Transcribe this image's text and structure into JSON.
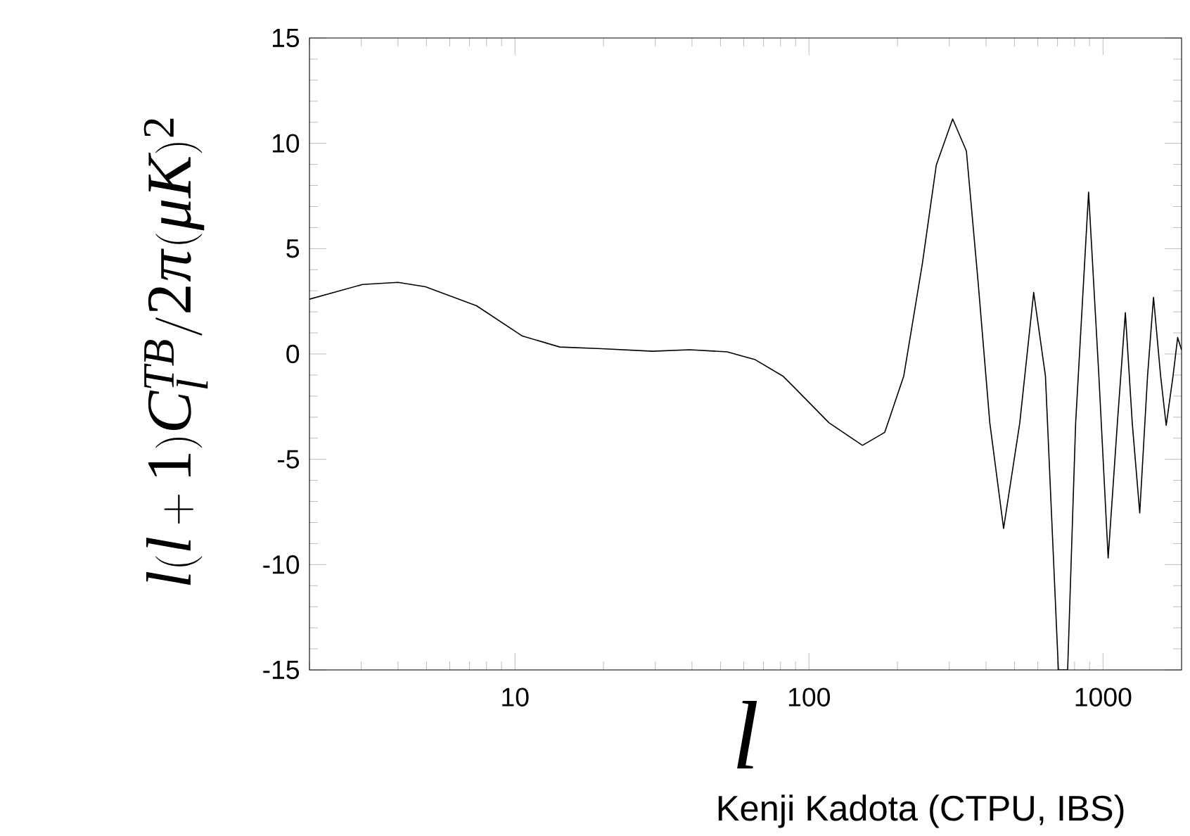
{
  "chart_data": {
    "type": "line",
    "ylabel": "l(l+1)C_l^{TB}/2\\pi(\\mu K)^2",
    "xlabel": "l",
    "log": "x",
    "xlim": [
      2,
      1850
    ],
    "ylim": [
      -15,
      15
    ],
    "xticks": [
      10,
      100,
      1000
    ],
    "yticks": [
      -15,
      -10,
      -5,
      0,
      5,
      10,
      15
    ],
    "annotations": [
      "Kenji Kadota (CTPU, IBS)"
    ],
    "series": [
      {
        "color": "#000000",
        "x": [
          2,
          3.03,
          4.0,
          4.96,
          7.4,
          10.6,
          14.2,
          19.7,
          29.4,
          39.3,
          52.7,
          65.6,
          81.5,
          87.7,
          117,
          152,
          181,
          210,
          243,
          271,
          308,
          343,
          376,
          412,
          459,
          521,
          581,
          637,
          705,
          758,
          807,
          893,
          968,
          1041,
          1119,
          1191,
          1257,
          1333,
          1417,
          1485,
          1570,
          1640,
          1730,
          1794,
          1849
        ],
        "values": [
          2.6,
          3.3,
          3.4,
          3.19,
          2.29,
          0.85,
          0.33,
          0.25,
          0.13,
          0.2,
          0.1,
          -0.27,
          -1.05,
          -1.49,
          -3.27,
          -4.34,
          -3.72,
          -1.05,
          4.3,
          8.97,
          11.16,
          9.64,
          3.41,
          -3.27,
          -8.28,
          -3.27,
          2.92,
          -1.05,
          -15,
          -15,
          -3.27,
          7.68,
          -1.05,
          -9.69,
          -3.27,
          1.96,
          -3.27,
          -7.55,
          -1.05,
          2.69,
          -1.05,
          -3.39,
          -1.05,
          0.78,
          0.2
        ]
      }
    ],
    "marker": "none",
    "line_style": "solid",
    "grid": false
  }
}
